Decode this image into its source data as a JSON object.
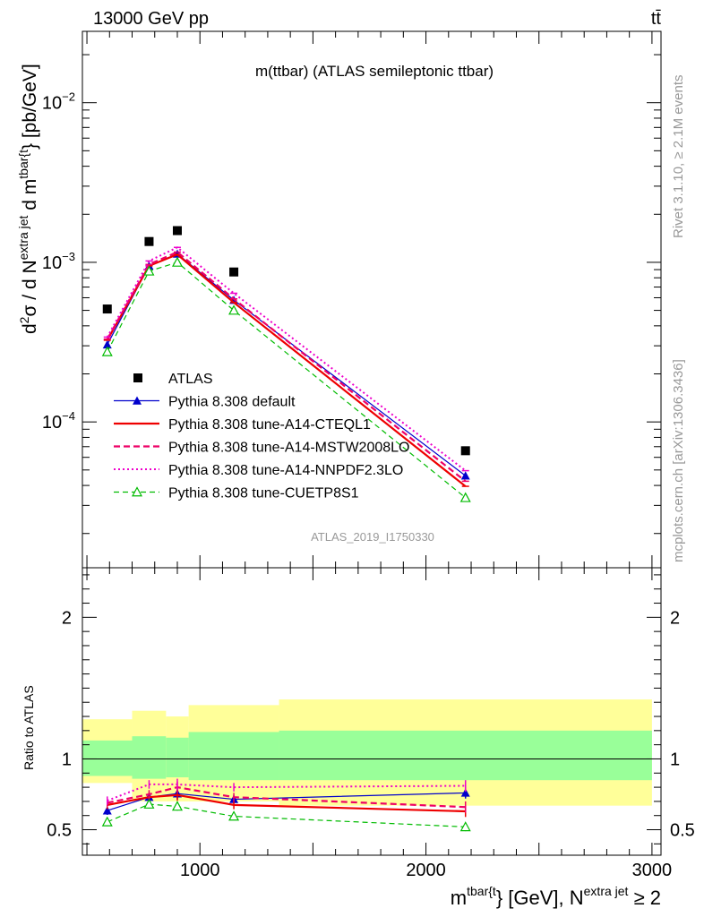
{
  "header": {
    "left": "13000 GeV pp",
    "right": "tt̄"
  },
  "title": "m(ttbar) (ATLAS semileptonic ttbar)",
  "analysis_label": "ATLAS_2019_I1750330",
  "side_text": {
    "rivet": "Rivet 3.1.10, ≥ 2.1M events",
    "mcplots": "mcplots.cern.ch [arXiv:1306.3436]"
  },
  "main_y_label": {
    "pre": "d",
    "sup1": "2",
    "mid": "σ / d N",
    "sup2": "extra jet",
    "mid2": " d m",
    "sup3": "tbar{t",
    "post": "} [pb/GeV]"
  },
  "ratio_y_label": "Ratio to ATLAS",
  "x_label": {
    "pre": "m",
    "sup1": "tbar{t",
    "mid": "} [GeV], N",
    "sup2": "extra jet",
    "post": " ≥ 2"
  },
  "x_ticks": [
    {
      "v": 1000,
      "label": "1000"
    },
    {
      "v": 2000,
      "label": "2000"
    },
    {
      "v": 3000,
      "label": "3000"
    }
  ],
  "main_y_ticks": [
    {
      "v": 0.01,
      "base": "10",
      "exp": "−2"
    },
    {
      "v": 0.001,
      "base": "10",
      "exp": "−3"
    },
    {
      "v": 0.0001,
      "base": "10",
      "exp": "−4"
    }
  ],
  "ratio_y_ticks": [
    {
      "v": 0.5,
      "label": "0.5"
    },
    {
      "v": 1,
      "label": "1"
    },
    {
      "v": 2,
      "label": "2"
    }
  ],
  "chart_data": {
    "type": "line",
    "x_axis": {
      "range": [
        480,
        3040
      ],
      "scale": "linear"
    },
    "main_panel": {
      "y_scale": "log",
      "y_range": [
        1.22e-05,
        0.028
      ]
    },
    "ratio_panel": {
      "y_range": [
        0.32,
        2.35
      ]
    },
    "bins": [
      {
        "lo": 480,
        "hi": 700
      },
      {
        "lo": 700,
        "hi": 850
      },
      {
        "lo": 850,
        "hi": 950
      },
      {
        "lo": 950,
        "hi": 1350
      },
      {
        "lo": 1350,
        "hi": 3000
      }
    ],
    "x": [
      590,
      775,
      900,
      1150,
      2175
    ],
    "atlas": {
      "name": "ATLAS",
      "values": [
        0.00051,
        0.00135,
        0.00158,
        0.00087,
        6.6e-05
      ],
      "color": "#000000"
    },
    "ratio_bands": {
      "stat_lo": [
        0.88,
        0.86,
        0.87,
        0.85,
        0.85
      ],
      "stat_hi": [
        1.13,
        1.16,
        1.15,
        1.19,
        1.2
      ],
      "total_lo": [
        0.83,
        0.7,
        0.7,
        0.7,
        0.67
      ],
      "total_hi": [
        1.28,
        1.34,
        1.3,
        1.38,
        1.42
      ],
      "stat_color": "#99ff99",
      "total_color": "#ffff99"
    },
    "series": [
      {
        "name": "Pythia 8.308 default",
        "values": [
          0.000305,
          0.00095,
          0.00113,
          0.00058,
          4.6e-05
        ],
        "ratio": [
          0.635,
          0.73,
          0.755,
          0.715,
          0.76
        ],
        "ratio_err": [
          0.03,
          0.03,
          0.04,
          0.03,
          0.04
        ],
        "color": "#0000cc",
        "dash": "",
        "marker": "triangle-filled",
        "width": 1.2
      },
      {
        "name": "Pythia 8.308 tune-A14-CTEQL1",
        "values": [
          0.000325,
          0.00095,
          0.00112,
          0.00056,
          3.95e-05
        ],
        "ratio": [
          0.675,
          0.73,
          0.745,
          0.675,
          0.63
        ],
        "ratio_err": [
          0.03,
          0.03,
          0.04,
          0.03,
          0.04
        ],
        "color": "#ee0000",
        "dash": "",
        "marker": "",
        "width": 2.2
      },
      {
        "name": "Pythia 8.308 tune-A14-MSTW2008LO",
        "values": [
          0.00033,
          0.00097,
          0.00116,
          0.00059,
          4.25e-05
        ],
        "ratio": [
          0.69,
          0.75,
          0.8,
          0.73,
          0.66
        ],
        "ratio_err": [
          0.03,
          0.03,
          0.04,
          0.03,
          0.04
        ],
        "color": "#ee0066",
        "dash": "7,4",
        "marker": "",
        "width": 2.2
      },
      {
        "name": "Pythia 8.308 tune-A14-NNPDF2.3LO",
        "values": [
          0.00034,
          0.00102,
          0.00124,
          0.00064,
          4.95e-05
        ],
        "ratio": [
          0.705,
          0.82,
          0.82,
          0.8,
          0.81
        ],
        "ratio_err": [
          0.03,
          0.03,
          0.04,
          0.03,
          0.04
        ],
        "color": "#ee00cc",
        "dash": "2,3",
        "marker": "",
        "width": 2
      },
      {
        "name": "Pythia 8.308 tune-CUETP8S1",
        "values": [
          0.000275,
          0.00088,
          0.001,
          0.0005,
          3.35e-05
        ],
        "ratio": [
          0.555,
          0.68,
          0.665,
          0.595,
          0.52
        ],
        "ratio_err": [
          0.03,
          0.03,
          0.03,
          0.02,
          0.03
        ],
        "color": "#00bb00",
        "dash": "6,4",
        "marker": "triangle-open",
        "width": 1.2
      }
    ]
  }
}
